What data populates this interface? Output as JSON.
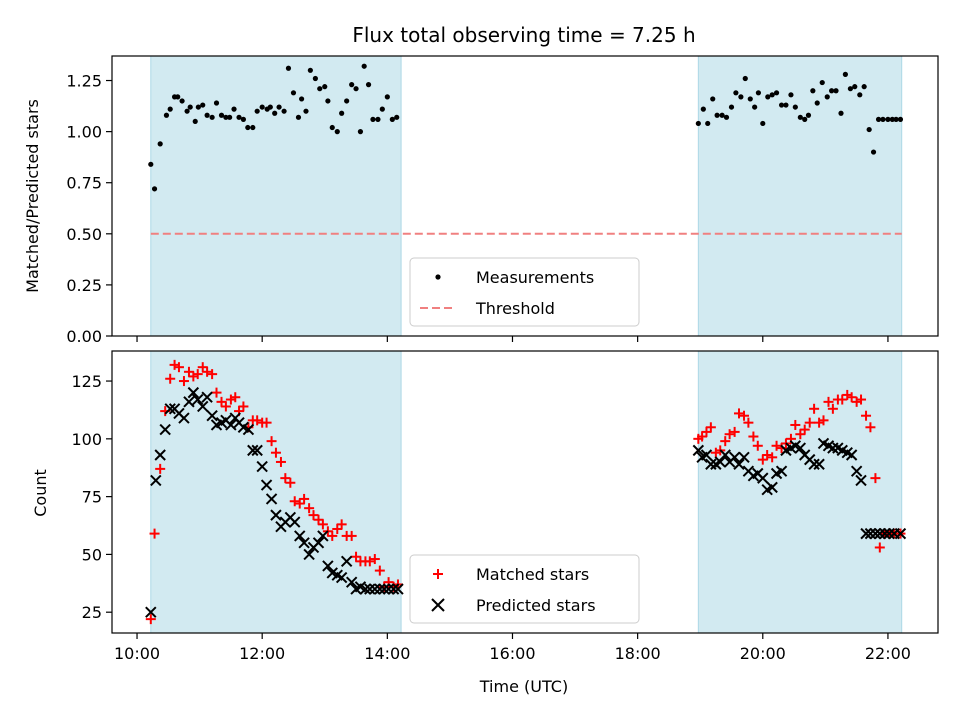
{
  "chart_data": [
    {
      "type": "scatter",
      "title": "Flux total observing time = 7.25 h",
      "xlabel": "",
      "ylabel": "Matched/Predicted stars",
      "xlim": [
        9.6,
        22.8
      ],
      "ylim": [
        0.0,
        1.37
      ],
      "x_axis_type": "time",
      "x_ticks": [
        10,
        12,
        14,
        16,
        18,
        20,
        22
      ],
      "x_tick_labels": [
        "",
        "",
        "",
        "",
        "",
        "",
        ""
      ],
      "y_ticks": [
        0.0,
        0.25,
        0.5,
        0.75,
        1.0,
        1.25
      ],
      "y_tick_labels": [
        "0.00",
        "0.25",
        "0.50",
        "0.75",
        "1.00",
        "1.25"
      ],
      "grid": false,
      "legend_position": "lower-center",
      "shaded_ranges": [
        [
          10.22,
          14.22
        ],
        [
          18.97,
          22.22
        ]
      ],
      "shade_color": "#add8e6",
      "threshold": {
        "name": "Threshold",
        "y": 0.5,
        "color": "#f08080",
        "style": "dashed"
      },
      "series": [
        {
          "name": "Measurements",
          "marker": "dot",
          "color": "#000000",
          "x": [
            10.22,
            10.28,
            10.37,
            10.47,
            10.53,
            10.6,
            10.65,
            10.72,
            10.8,
            10.85,
            10.93,
            10.98,
            11.05,
            11.12,
            11.2,
            11.27,
            11.35,
            11.42,
            11.48,
            11.55,
            11.63,
            11.7,
            11.77,
            11.85,
            11.92,
            12.0,
            12.08,
            12.13,
            12.2,
            12.27,
            12.35,
            12.42,
            12.5,
            12.58,
            12.63,
            12.7,
            12.77,
            12.85,
            12.92,
            13.0,
            13.05,
            13.12,
            13.2,
            13.27,
            13.35,
            13.43,
            13.5,
            13.57,
            13.63,
            13.7,
            13.77,
            13.85,
            13.92,
            14.0,
            14.08,
            14.15,
            18.97,
            19.05,
            19.12,
            19.2,
            19.27,
            19.35,
            19.42,
            19.5,
            19.57,
            19.65,
            19.72,
            19.8,
            19.87,
            19.93,
            20.0,
            20.08,
            20.15,
            20.22,
            20.3,
            20.37,
            20.45,
            20.52,
            20.6,
            20.67,
            20.73,
            20.8,
            20.87,
            20.95,
            21.03,
            21.1,
            21.17,
            21.25,
            21.32,
            21.4,
            21.47,
            21.55,
            21.62,
            21.7,
            21.77,
            21.85,
            21.92,
            22.0,
            22.07,
            22.13,
            22.2
          ],
          "y": [
            0.84,
            0.72,
            0.94,
            1.08,
            1.11,
            1.17,
            1.17,
            1.15,
            1.1,
            1.12,
            1.05,
            1.12,
            1.13,
            1.08,
            1.07,
            1.14,
            1.08,
            1.07,
            1.07,
            1.11,
            1.07,
            1.06,
            1.02,
            1.02,
            1.1,
            1.12,
            1.11,
            1.12,
            1.09,
            1.12,
            1.1,
            1.31,
            1.19,
            1.07,
            1.16,
            1.1,
            1.3,
            1.26,
            1.21,
            1.22,
            1.15,
            1.02,
            1.0,
            1.09,
            1.15,
            1.23,
            1.21,
            1.0,
            1.32,
            1.23,
            1.06,
            1.06,
            1.11,
            1.17,
            1.06,
            1.07,
            1.04,
            1.11,
            1.04,
            1.16,
            1.08,
            1.08,
            1.07,
            1.12,
            1.19,
            1.17,
            1.26,
            1.16,
            1.12,
            1.19,
            1.04,
            1.17,
            1.18,
            1.19,
            1.13,
            1.13,
            1.18,
            1.12,
            1.07,
            1.06,
            1.08,
            1.2,
            1.14,
            1.24,
            1.17,
            1.2,
            1.2,
            1.09,
            1.28,
            1.21,
            1.22,
            1.18,
            1.22,
            1.01,
            0.9,
            1.06,
            1.06,
            1.06,
            1.06,
            1.06,
            1.06
          ],
          "note_truncate": 95
        }
      ]
    },
    {
      "type": "scatter",
      "title": "",
      "xlabel": "Time (UTC)",
      "ylabel": "Count",
      "xlim": [
        9.6,
        22.8
      ],
      "ylim": [
        16,
        138
      ],
      "x_axis_type": "time",
      "x_ticks": [
        10,
        12,
        14,
        16,
        18,
        20,
        22
      ],
      "x_tick_labels": [
        "10:00",
        "12:00",
        "14:00",
        "16:00",
        "18:00",
        "20:00",
        "22:00"
      ],
      "y_ticks": [
        25,
        50,
        75,
        100,
        125
      ],
      "y_tick_labels": [
        "25",
        "50",
        "75",
        "100",
        "125"
      ],
      "grid": false,
      "legend_position": "lower-center",
      "shaded_ranges": [
        [
          10.22,
          14.22
        ],
        [
          18.97,
          22.22
        ]
      ],
      "shade_color": "#add8e6",
      "series": [
        {
          "name": "Matched stars",
          "marker": "plus",
          "color": "#ff0000",
          "x": [
            10.22,
            10.28,
            10.37,
            10.45,
            10.53,
            10.6,
            10.67,
            10.75,
            10.83,
            10.9,
            10.97,
            11.05,
            11.12,
            11.2,
            11.27,
            11.35,
            11.42,
            11.5,
            11.57,
            11.63,
            11.7,
            11.78,
            11.85,
            11.92,
            12.0,
            12.07,
            12.15,
            12.22,
            12.3,
            12.37,
            12.45,
            12.52,
            12.6,
            12.67,
            12.75,
            12.82,
            12.9,
            12.97,
            13.05,
            13.12,
            13.2,
            13.27,
            13.35,
            13.43,
            13.5,
            13.57,
            13.65,
            13.72,
            13.8,
            13.88,
            13.95,
            14.02,
            14.1,
            14.17,
            18.97,
            19.03,
            19.1,
            19.17,
            19.25,
            19.32,
            19.4,
            19.47,
            19.55,
            19.62,
            19.7,
            19.77,
            19.85,
            19.92,
            20.0,
            20.07,
            20.15,
            20.22,
            20.3,
            20.37,
            20.45,
            20.52,
            20.6,
            20.67,
            20.75,
            20.82,
            20.9,
            20.97,
            21.05,
            21.12,
            21.2,
            21.27,
            21.35,
            21.42,
            21.5,
            21.57,
            21.65,
            21.72,
            21.8,
            21.87,
            21.95,
            22.02,
            22.1,
            22.2
          ],
          "y": [
            22,
            59,
            87,
            112,
            126,
            132,
            131,
            125,
            129,
            127,
            128,
            131,
            129,
            128,
            120,
            116,
            114,
            117,
            118,
            112,
            114,
            105,
            108,
            108,
            107,
            107,
            99,
            94,
            90,
            83,
            81,
            73,
            72,
            74,
            70,
            67,
            65,
            63,
            60,
            58,
            61,
            63,
            58,
            58,
            49,
            47,
            47,
            47,
            48,
            43,
            36,
            38,
            36,
            37,
            100,
            101,
            103,
            105,
            94,
            95,
            99,
            102,
            103,
            111,
            110,
            107,
            101,
            97,
            91,
            93,
            92,
            97,
            96,
            98,
            100,
            106,
            102,
            104,
            107,
            113,
            107,
            108,
            116,
            113,
            117,
            117,
            119,
            118,
            116,
            117,
            110,
            105,
            83,
            53,
            59,
            59,
            59,
            59
          ]
        },
        {
          "name": "Predicted stars",
          "marker": "x",
          "color": "#000000",
          "x": [
            10.22,
            10.3,
            10.37,
            10.45,
            10.53,
            10.6,
            10.67,
            10.75,
            10.83,
            10.9,
            10.97,
            11.05,
            11.12,
            11.2,
            11.27,
            11.35,
            11.42,
            11.5,
            11.57,
            11.63,
            11.7,
            11.78,
            11.85,
            11.92,
            12.0,
            12.07,
            12.15,
            12.22,
            12.3,
            12.37,
            12.45,
            12.52,
            12.6,
            12.67,
            12.75,
            12.82,
            12.9,
            12.97,
            13.05,
            13.12,
            13.2,
            13.27,
            13.35,
            13.43,
            13.5,
            13.57,
            13.65,
            13.72,
            13.8,
            13.88,
            13.95,
            14.02,
            14.1,
            14.17,
            18.97,
            19.03,
            19.1,
            19.17,
            19.25,
            19.32,
            19.4,
            19.47,
            19.55,
            19.62,
            19.7,
            19.77,
            19.85,
            19.92,
            20.0,
            20.07,
            20.15,
            20.22,
            20.3,
            20.37,
            20.45,
            20.52,
            20.6,
            20.67,
            20.75,
            20.82,
            20.9,
            20.97,
            21.05,
            21.12,
            21.2,
            21.27,
            21.35,
            21.42,
            21.5,
            21.57,
            21.65,
            21.72,
            21.8,
            21.87,
            21.95,
            22.02,
            22.1,
            22.2
          ],
          "y": [
            25,
            82,
            93,
            104,
            113,
            113,
            111,
            109,
            116,
            120,
            117,
            114,
            118,
            110,
            106,
            107,
            108,
            106,
            109,
            107,
            105,
            104,
            95,
            95,
            88,
            80,
            74,
            67,
            62,
            64,
            66,
            64,
            58,
            55,
            50,
            53,
            55,
            58,
            45,
            42,
            41,
            40,
            47,
            38,
            35,
            36,
            35,
            35,
            35,
            35,
            35,
            35,
            35,
            35,
            95,
            92,
            93,
            89,
            89,
            90,
            93,
            90,
            92,
            89,
            92,
            86,
            84,
            85,
            83,
            78,
            79,
            85,
            86,
            95,
            96,
            97,
            96,
            93,
            91,
            89,
            89,
            98,
            97,
            96,
            96,
            95,
            94,
            93,
            86,
            82,
            59,
            59,
            59,
            59,
            59,
            59,
            59,
            59
          ]
        }
      ]
    }
  ]
}
